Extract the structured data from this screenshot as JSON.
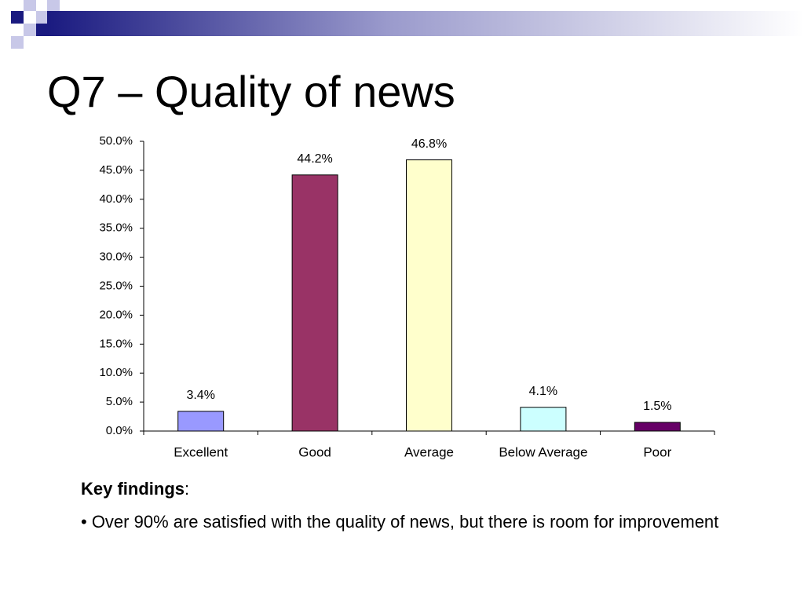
{
  "chart_data": {
    "type": "bar",
    "title": "Q7 – Quality of news",
    "categories": [
      "Excellent",
      "Good",
      "Average",
      "Below Average",
      "Poor"
    ],
    "values": [
      3.4,
      44.2,
      46.8,
      4.1,
      1.5
    ],
    "value_labels": [
      "3.4%",
      "44.2%",
      "46.8%",
      "4.1%",
      "1.5%"
    ],
    "colors": [
      "#9999ff",
      "#993366",
      "#ffffcc",
      "#ccffff",
      "#660066"
    ],
    "ylim": [
      0,
      50
    ],
    "yticks": [
      {
        "value": 0,
        "label": "0.0%"
      },
      {
        "value": 5,
        "label": "5.0%"
      },
      {
        "value": 10,
        "label": "10.0%"
      },
      {
        "value": 15,
        "label": "15.0%"
      },
      {
        "value": 20,
        "label": "20.0%"
      },
      {
        "value": 25,
        "label": "25.0%"
      },
      {
        "value": 30,
        "label": "30.0%"
      },
      {
        "value": 35,
        "label": "35.0%"
      },
      {
        "value": 40,
        "label": "40.0%"
      },
      {
        "value": 45,
        "label": "45.0%"
      },
      {
        "value": 50,
        "label": "50.0%"
      }
    ],
    "grid": false
  },
  "notes": {
    "heading": "Key findings",
    "punct": ":",
    "bullets": [
      "• Over 90% are satisfied with the quality of news, but there is room for improvement"
    ]
  }
}
